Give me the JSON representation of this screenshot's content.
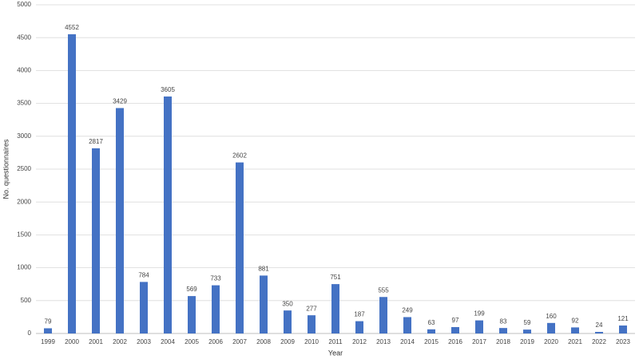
{
  "chart_data": {
    "type": "bar",
    "x_label": "Year",
    "y_label": "No. questionnaires",
    "categories": [
      "1999",
      "2000",
      "2001",
      "2002",
      "2003",
      "2004",
      "2005",
      "2006",
      "2007",
      "2008",
      "2009",
      "2010",
      "2011",
      "2012",
      "2013",
      "2014",
      "2015",
      "2016",
      "2017",
      "2018",
      "2019",
      "2020",
      "2021",
      "2022",
      "2023"
    ],
    "values": [
      79,
      4552,
      2817,
      3429,
      784,
      3605,
      569,
      733,
      2602,
      881,
      350,
      277,
      751,
      187,
      555,
      249,
      63,
      97,
      199,
      83,
      59,
      160,
      92,
      24,
      121
    ],
    "color": "#4472c4",
    "ylim": [
      0,
      5000
    ],
    "yticks": [
      0,
      500,
      1000,
      1500,
      2000,
      2500,
      3000,
      3500,
      4000,
      4500,
      5000
    ],
    "grid": true
  }
}
